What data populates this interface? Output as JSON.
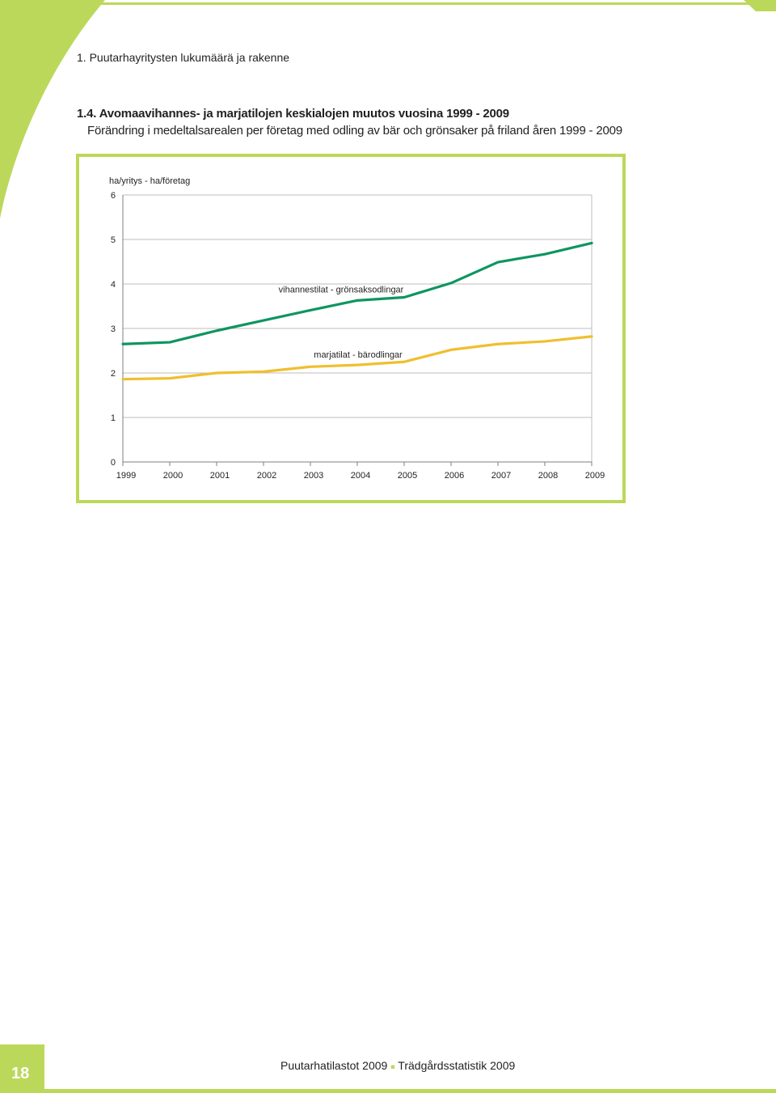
{
  "page": {
    "header": "1. Puutarhayritysten lukumäärä ja rakenne",
    "title_fi": "1.4.  Avomaavihannes- ja marjatilojen keskialojen muutos vuosina 1999 - 2009",
    "title_sv": "Förändring i medeltalsarealen per företag med odling av bär och grönsaker på friland åren 1999 - 2009",
    "footer_left": "Puutarhatilastot 2009",
    "footer_sep": "■",
    "footer_right": "Trädgårdsstatistik 2009",
    "page_number": "18"
  },
  "colors": {
    "accent_green": "#bcd85a",
    "series_vegetables": "#0f9561",
    "series_berries": "#f0bf2f"
  },
  "chart_data": {
    "type": "line",
    "ylabel": "ha/yritys - ha/företag",
    "ylim": [
      0,
      6
    ],
    "yticks": [
      "0",
      "1",
      "2",
      "3",
      "4",
      "5",
      "6"
    ],
    "categories": [
      "1999",
      "2000",
      "2001",
      "2002",
      "2003",
      "2004",
      "2005",
      "2006",
      "2007",
      "2008",
      "2009"
    ],
    "grid": true,
    "series": [
      {
        "name": "vihannestilat - grönsaksodlingar",
        "color": "#0f9561",
        "values": [
          2.65,
          2.69,
          2.95,
          3.18,
          3.41,
          3.63,
          3.7,
          4.02,
          4.49,
          4.67,
          4.92
        ]
      },
      {
        "name": "marjatilat - bärodlingar",
        "color": "#f0bf2f",
        "values": [
          1.86,
          1.88,
          2.0,
          2.03,
          2.14,
          2.18,
          2.25,
          2.52,
          2.65,
          2.71,
          2.82
        ]
      }
    ]
  }
}
